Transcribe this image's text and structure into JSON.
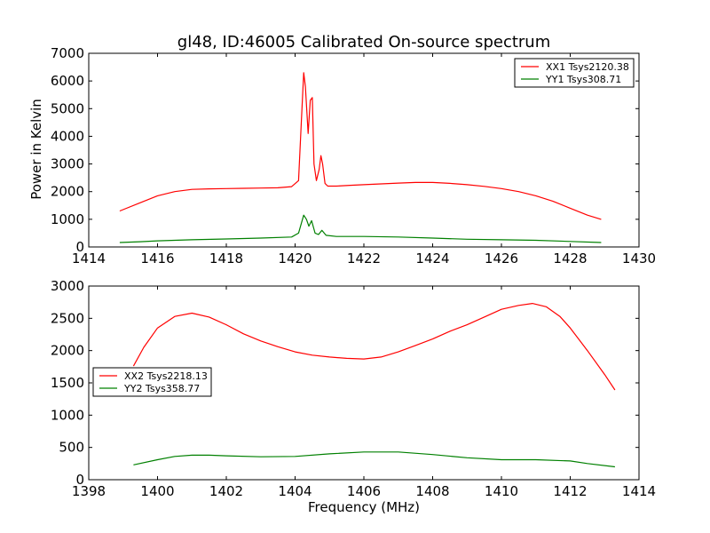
{
  "chart_data": [
    {
      "type": "line",
      "title": "gl48, ID:46005 Calibrated On-source spectrum",
      "xlabel": "",
      "ylabel": "Power in Kelvin",
      "xlim": [
        1414,
        1430
      ],
      "ylim": [
        0,
        7000
      ],
      "xticks": [
        1414,
        1416,
        1418,
        1420,
        1422,
        1424,
        1426,
        1428,
        1430
      ],
      "yticks": [
        0,
        1000,
        2000,
        3000,
        4000,
        5000,
        6000,
        7000
      ],
      "legend_position": "top-right",
      "series": [
        {
          "name": "XX1 Tsys2120.38",
          "color": "#ff0000",
          "x": [
            1414.9,
            1415.5,
            1416.0,
            1416.5,
            1417.0,
            1417.5,
            1418.0,
            1418.5,
            1419.0,
            1419.5,
            1419.9,
            1420.1,
            1420.18,
            1420.25,
            1420.3,
            1420.38,
            1420.44,
            1420.5,
            1420.55,
            1420.62,
            1420.7,
            1420.75,
            1420.8,
            1420.87,
            1420.95,
            1421.2,
            1421.6,
            1422.0,
            1422.5,
            1423.0,
            1423.5,
            1424.0,
            1424.5,
            1425.0,
            1425.5,
            1426.0,
            1426.5,
            1427.0,
            1427.5,
            1428.0,
            1428.5,
            1428.9
          ],
          "y": [
            1300,
            1600,
            1850,
            2000,
            2080,
            2100,
            2110,
            2120,
            2130,
            2140,
            2180,
            2400,
            4500,
            6300,
            5800,
            4100,
            5300,
            5400,
            3000,
            2400,
            2800,
            3300,
            3000,
            2300,
            2200,
            2200,
            2230,
            2250,
            2280,
            2310,
            2330,
            2330,
            2300,
            2250,
            2190,
            2110,
            2000,
            1850,
            1650,
            1400,
            1150,
            1000
          ]
        },
        {
          "name": "YY1 Tsys308.71",
          "color": "#008000",
          "x": [
            1414.9,
            1415.5,
            1416.0,
            1417.0,
            1418.0,
            1419.0,
            1419.9,
            1420.1,
            1420.25,
            1420.33,
            1420.4,
            1420.48,
            1420.58,
            1420.68,
            1420.78,
            1420.9,
            1421.2,
            1422.0,
            1423.0,
            1424.0,
            1425.0,
            1426.0,
            1427.0,
            1428.0,
            1428.9
          ],
          "y": [
            160,
            190,
            220,
            260,
            290,
            320,
            360,
            500,
            1150,
            1000,
            750,
            950,
            500,
            450,
            600,
            420,
            380,
            380,
            360,
            320,
            280,
            260,
            240,
            200,
            160
          ]
        }
      ]
    },
    {
      "type": "line",
      "title": "",
      "xlabel": "Frequency (MHz)",
      "ylabel": "",
      "xlim": [
        1398,
        1414
      ],
      "ylim": [
        0,
        3000
      ],
      "xticks": [
        1398,
        1400,
        1402,
        1404,
        1406,
        1408,
        1410,
        1412,
        1414
      ],
      "yticks": [
        0,
        500,
        1000,
        1500,
        2000,
        2500,
        3000
      ],
      "legend_position": "center-left",
      "series": [
        {
          "name": "XX2 Tsys2218.13",
          "color": "#ff0000",
          "x": [
            1399.3,
            1399.6,
            1400.0,
            1400.5,
            1401.0,
            1401.5,
            1402.0,
            1402.5,
            1403.0,
            1403.5,
            1404.0,
            1404.5,
            1405.0,
            1405.5,
            1406.0,
            1406.5,
            1407.0,
            1407.5,
            1408.0,
            1408.5,
            1409.0,
            1409.5,
            1410.0,
            1410.5,
            1410.9,
            1411.3,
            1411.7,
            1412.0,
            1412.5,
            1413.0,
            1413.3
          ],
          "y": [
            1760,
            2050,
            2350,
            2530,
            2580,
            2520,
            2400,
            2260,
            2150,
            2060,
            1980,
            1930,
            1900,
            1880,
            1870,
            1900,
            1980,
            2080,
            2180,
            2300,
            2400,
            2520,
            2640,
            2700,
            2730,
            2680,
            2530,
            2350,
            2000,
            1630,
            1390
          ]
        },
        {
          "name": "YY2 Tsys358.77",
          "color": "#008000",
          "x": [
            1399.3,
            1400.0,
            1400.5,
            1401.0,
            1401.5,
            1402.0,
            1403.0,
            1404.0,
            1405.0,
            1406.0,
            1407.0,
            1408.0,
            1409.0,
            1410.0,
            1411.0,
            1412.0,
            1412.5,
            1413.3
          ],
          "y": [
            230,
            310,
            360,
            380,
            380,
            370,
            355,
            360,
            400,
            430,
            430,
            390,
            340,
            310,
            310,
            290,
            250,
            200
          ]
        }
      ]
    }
  ]
}
